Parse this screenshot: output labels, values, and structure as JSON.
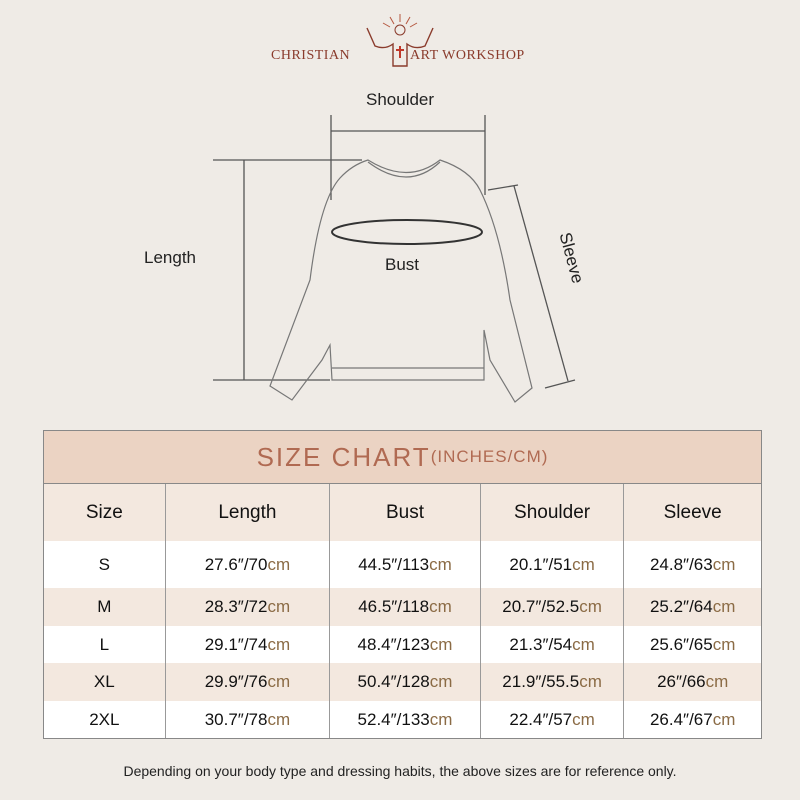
{
  "brand": {
    "left": "CHRISTIAN",
    "right": "ART WORKSHOP"
  },
  "diagram": {
    "shoulder": "Shoulder",
    "length": "Length",
    "bust": "Bust",
    "sleeve": "Sleeve"
  },
  "table": {
    "title": "SIZE CHART",
    "title_units": "(INCHES/CM)",
    "headers": [
      "Size",
      "Length",
      "Bust",
      "Shoulder",
      "Sleeve"
    ],
    "rows": [
      {
        "size": "S",
        "cells": [
          [
            "27.6″/70",
            "cm"
          ],
          [
            "44.5″/113",
            "cm"
          ],
          [
            "20.1″/51",
            "cm"
          ],
          [
            "24.8″/63",
            "cm"
          ]
        ]
      },
      {
        "size": "M",
        "cells": [
          [
            "28.3″/72",
            "cm"
          ],
          [
            "46.5″/118",
            "cm"
          ],
          [
            "20.7″/52.5",
            "cm"
          ],
          [
            "25.2″/64",
            "cm"
          ]
        ]
      },
      {
        "size": "L",
        "cells": [
          [
            "29.1″/74",
            "cm"
          ],
          [
            "48.4″/123",
            "cm"
          ],
          [
            "21.3″/54",
            "cm"
          ],
          [
            "25.6″/65",
            "cm"
          ]
        ]
      },
      {
        "size": "XL",
        "cells": [
          [
            "29.9″/76",
            "cm"
          ],
          [
            "50.4″/128",
            "cm"
          ],
          [
            "21.9″/55.5",
            "cm"
          ],
          [
            "26″/66",
            "cm"
          ]
        ]
      },
      {
        "size": "2XL",
        "cells": [
          [
            "30.7″/78",
            "cm"
          ],
          [
            "52.4″/133",
            "cm"
          ],
          [
            "22.4″/57",
            "cm"
          ],
          [
            "26.4″/67",
            "cm"
          ]
        ]
      }
    ]
  },
  "note": "Depending on your body type and dressing habits, the above sizes are for reference only.",
  "colors": {
    "brand": "#8a3b2c",
    "title_bg": "#ebd3c3",
    "title_text": "#b06a52",
    "row_alt": "#f3e8df",
    "cm": "#8b6b45"
  }
}
